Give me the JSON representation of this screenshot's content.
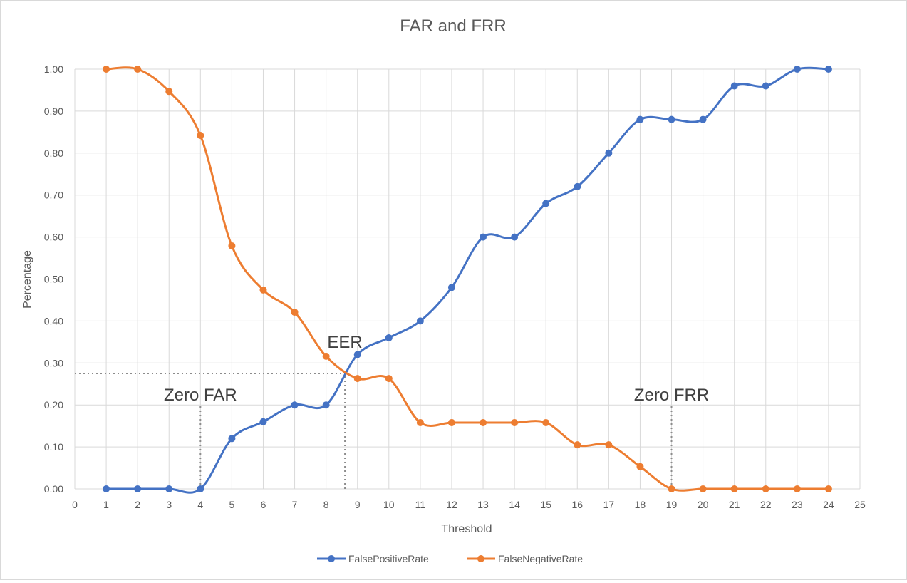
{
  "chart_data": {
    "type": "line",
    "title": "FAR and FRR",
    "xlabel": "Threshold",
    "ylabel": "Percentage",
    "xlim": [
      0,
      25
    ],
    "ylim": [
      0,
      1.0
    ],
    "x_ticks": [
      "0",
      "1",
      "2",
      "3",
      "4",
      "5",
      "6",
      "7",
      "8",
      "9",
      "10",
      "11",
      "12",
      "13",
      "14",
      "15",
      "16",
      "17",
      "18",
      "19",
      "20",
      "21",
      "22",
      "23",
      "24",
      "25"
    ],
    "y_ticks": [
      "0.00",
      "0.10",
      "0.20",
      "0.30",
      "0.40",
      "0.50",
      "0.60",
      "0.70",
      "0.80",
      "0.90",
      "1.00"
    ],
    "grid": true,
    "smoothed": true,
    "legend_position": "bottom",
    "x": [
      1,
      2,
      3,
      4,
      5,
      6,
      7,
      8,
      9,
      10,
      11,
      12,
      13,
      14,
      15,
      16,
      17,
      18,
      19,
      20,
      21,
      22,
      23,
      24
    ],
    "series": [
      {
        "name": "FalsePositiveRate",
        "color": "#4472c4",
        "values": [
          0,
          0,
          0,
          0,
          0.12,
          0.16,
          0.2,
          0.2,
          0.32,
          0.36,
          0.4,
          0.48,
          0.6,
          0.6,
          0.68,
          0.72,
          0.8,
          0.88,
          0.88,
          0.88,
          0.96,
          0.96,
          1.0,
          1.0
        ]
      },
      {
        "name": "FalseNegativeRate",
        "color": "#ed7d31",
        "values": [
          1.0,
          1.0,
          0.947,
          0.842,
          0.579,
          0.474,
          0.421,
          0.316,
          0.263,
          0.263,
          0.158,
          0.158,
          0.158,
          0.158,
          0.158,
          0.105,
          0.105,
          0.053,
          0,
          0,
          0,
          0,
          0,
          0
        ]
      }
    ],
    "annotations": [
      {
        "text": "EER",
        "x": 8.6,
        "y": 0.275
      },
      {
        "text": "Zero FAR",
        "x": 4,
        "y": 0.2
      },
      {
        "text": "Zero FRR",
        "x": 19,
        "y": 0.2
      }
    ],
    "reference_lines": [
      {
        "kind": "horizontal",
        "y": 0.275,
        "from_x": 0,
        "to_x": 8.6
      },
      {
        "kind": "vertical",
        "x": 8.6,
        "from_y": 0,
        "to_y": 0.275
      },
      {
        "kind": "vertical",
        "x": 4,
        "from_y": 0,
        "to_y": 0.2
      },
      {
        "kind": "vertical",
        "x": 19,
        "from_y": 0,
        "to_y": 0.2
      }
    ]
  }
}
